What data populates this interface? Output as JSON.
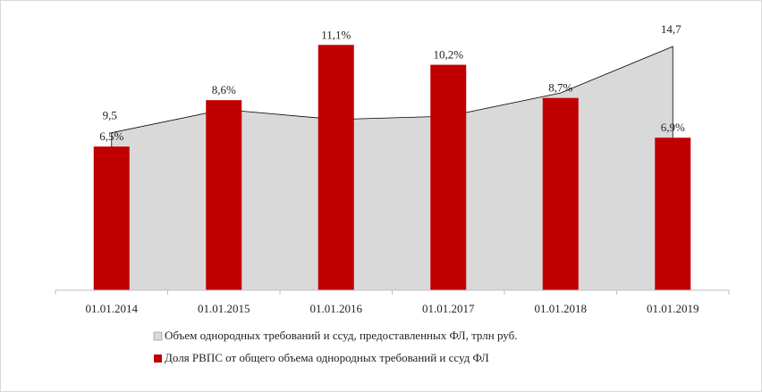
{
  "chart_data": {
    "type": "bar_area",
    "categories": [
      "01.01.2014",
      "01.01.2015",
      "01.01.2016",
      "01.01.2017",
      "01.01.2018",
      "01.01.2019"
    ],
    "series": [
      {
        "name": "Объем однородных требований и ссуд, предоставленных ФЛ, трлн руб.",
        "type": "area",
        "axis": "y2",
        "color": "#d9d9d9",
        "values": [
          9.5,
          10.9,
          10.3,
          10.5,
          11.9,
          14.7
        ],
        "value_labels": [
          "9,5",
          null,
          null,
          null,
          null,
          "14,7"
        ]
      },
      {
        "name": "Доля РВПС от общего объема однородных требований и ссуд ФЛ",
        "type": "bar",
        "color": "#c00000",
        "values": [
          6.5,
          8.6,
          11.1,
          10.2,
          8.7,
          6.9
        ],
        "value_labels": [
          "6,5%",
          "8,6%",
          "11,1%",
          "10,2%",
          "8,7%",
          "6,9%"
        ]
      }
    ],
    "ylim": [
      0,
      12
    ],
    "y2lim": [
      0,
      16
    ],
    "legend": "bottom"
  }
}
